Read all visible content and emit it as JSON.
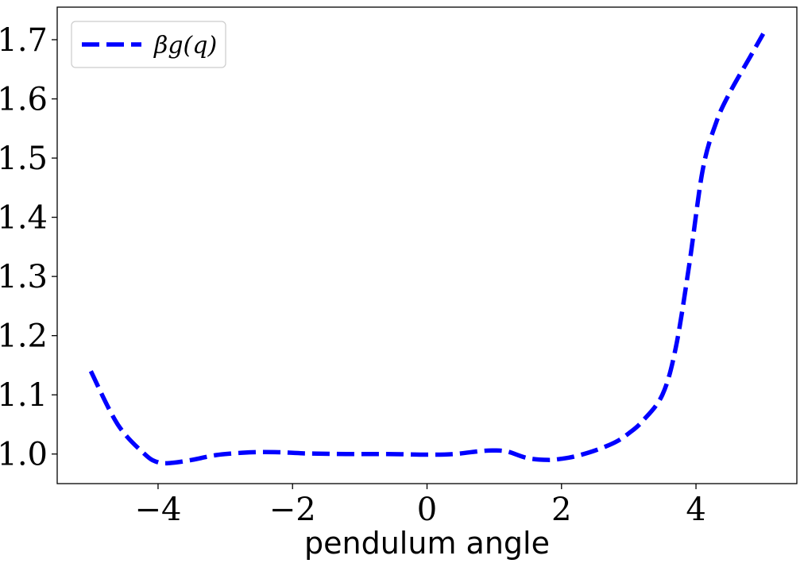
{
  "chart_data": {
    "type": "line",
    "title": "",
    "xlabel": "pendulum angle",
    "ylabel": "",
    "xlim": [
      -5.5,
      5.5
    ],
    "ylim": [
      0.95,
      1.755
    ],
    "xticks": [
      -4,
      -2,
      0,
      2,
      4
    ],
    "xtick_labels": [
      "−4",
      "−2",
      "0",
      "2",
      "4"
    ],
    "yticks": [
      1.0,
      1.1,
      1.2,
      1.3,
      1.4,
      1.5,
      1.6,
      1.7
    ],
    "ytick_labels": [
      "1.0",
      "1.1",
      "1.2",
      "1.3",
      "1.4",
      "1.5",
      "1.6",
      "1.7"
    ],
    "grid": false,
    "legend_position": "top-left",
    "series": [
      {
        "name": "βg(q)",
        "color": "#0000ff",
        "style": "dashed",
        "x": [
          -5.0,
          -4.6,
          -4.2,
          -4.0,
          -3.8,
          -3.5,
          -3.2,
          -3.0,
          -2.6,
          -2.2,
          -1.8,
          -1.2,
          -0.6,
          0.0,
          0.4,
          0.8,
          1.0,
          1.2,
          1.5,
          1.8,
          2.0,
          2.2,
          2.5,
          2.8,
          3.0,
          3.2,
          3.5,
          3.7,
          3.9,
          4.1,
          4.3,
          4.5,
          4.8,
          5.0
        ],
        "y": [
          1.14,
          1.05,
          1.0,
          0.986,
          0.985,
          0.99,
          0.997,
          1.0,
          1.003,
          1.003,
          1.001,
          1.0,
          1.0,
          0.999,
          1.0,
          1.005,
          1.006,
          1.004,
          0.993,
          0.99,
          0.992,
          0.996,
          1.006,
          1.02,
          1.035,
          1.055,
          1.1,
          1.18,
          1.32,
          1.48,
          1.56,
          1.61,
          1.67,
          1.71
        ]
      }
    ]
  }
}
